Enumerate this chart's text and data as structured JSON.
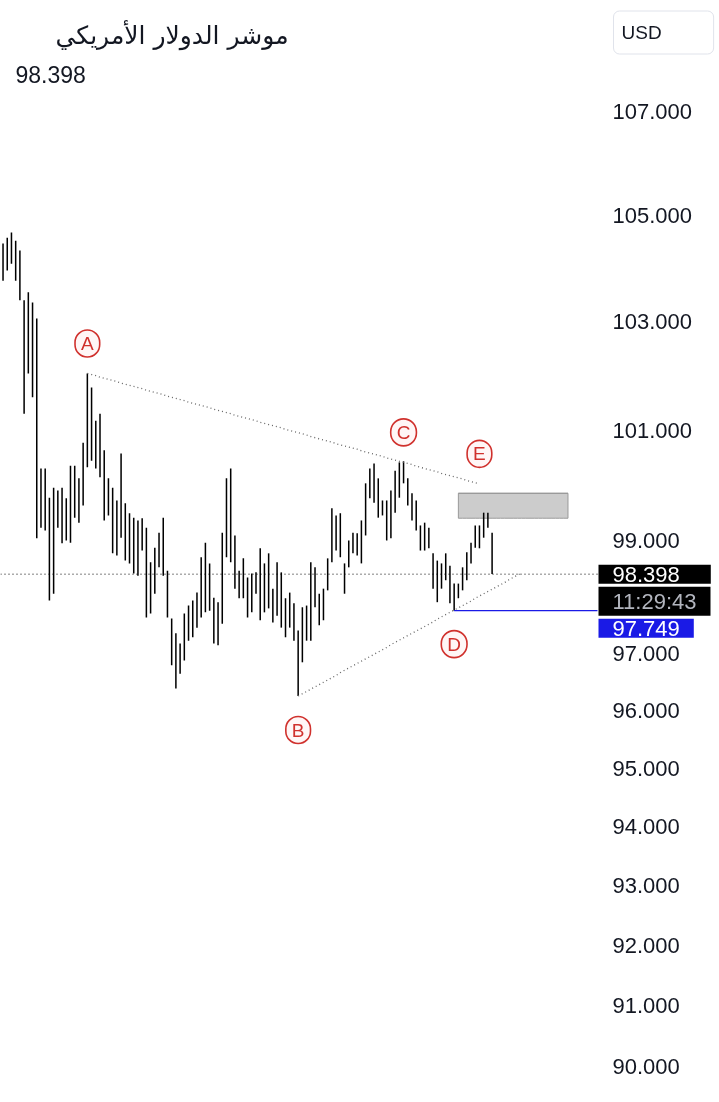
{
  "chart_data": {
    "type": "bar",
    "title": "موشر الدولار الأمريكي",
    "subtitle": "98.398",
    "categories": [
      null,
      null,
      null,
      null,
      null,
      null,
      null,
      null,
      null,
      null,
      null,
      null,
      null,
      null,
      null,
      null,
      null,
      null,
      null,
      null,
      null,
      null,
      null,
      null,
      null,
      null,
      null,
      null,
      null,
      null,
      null,
      null,
      null,
      null,
      null,
      null,
      null,
      null,
      null,
      null,
      null,
      null,
      null,
      null,
      null,
      null,
      null,
      null,
      null,
      null,
      null,
      null,
      null,
      null,
      null,
      null,
      null,
      null,
      null,
      null,
      null,
      null,
      null,
      null,
      null,
      null,
      null,
      null,
      null,
      null,
      null,
      null,
      null,
      null,
      null,
      null,
      null,
      null,
      null,
      null,
      null,
      null,
      null,
      null,
      null,
      null,
      null,
      null,
      null,
      null,
      null,
      null,
      null,
      null,
      null,
      null,
      null,
      null,
      null,
      null,
      null,
      null,
      null,
      null,
      null,
      null,
      null,
      null,
      null,
      null,
      null,
      null,
      null,
      null,
      null,
      null,
      null,
      null,
      null,
      null,
      null,
      null,
      null,
      null,
      null,
      null,
      null,
      null,
      null,
      null,
      null,
      null,
      null,
      null,
      null,
      null,
      null,
      null,
      null,
      null,
      null,
      null
    ],
    "series": [
      {
        "color": "#000000",
        "base": [
          103.77,
          103.96,
          104.09,
          103.77,
          103.4,
          101.3,
          102.04,
          101.6,
          99.04,
          99.23,
          99.18,
          97.93,
          98.05,
          99.23,
          98.95,
          99.0,
          98.96,
          99.41,
          99.32,
          99.63,
          100.32,
          100.44,
          100.3,
          100.14,
          99.36,
          99.45,
          98.77,
          98.73,
          99.05,
          98.64,
          98.59,
          98.41,
          98.37,
          98.82,
          97.63,
          97.7,
          98.05,
          98.52,
          98.37,
          97.63,
          96.79,
          96.38,
          96.64,
          96.87,
          97.22,
          97.28,
          97.45,
          97.63,
          97.72,
          97.75,
          97.17,
          97.14,
          97.52,
          98.7,
          98.61,
          98.14,
          97.97,
          97.97,
          97.63,
          97.72,
          98.05,
          97.58,
          97.72,
          97.79,
          97.54,
          97.66,
          97.45,
          97.28,
          97.45,
          97.22,
          96.25,
          96.84,
          97.22,
          97.22,
          97.81,
          97.49,
          97.58,
          98.11,
          98.61,
          98.82,
          98.7,
          98.05,
          98.52,
          98.77,
          98.73,
          98.59,
          99.09,
          99.76,
          99.68,
          99.41,
          99.45,
          99.0,
          99.04,
          99.5,
          99.77,
          100.03,
          99.63,
          99.36,
          99.18,
          98.82,
          98.82,
          98.86,
          98.14,
          97.9,
          98.14,
          98.29,
          97.88,
          97.75,
          97.97,
          98.11,
          98.29,
          98.59,
          98.87,
          98.86,
          99.05,
          99.23,
          98.4,
          null,
          null,
          null,
          null,
          null,
          null,
          null,
          null,
          null,
          null,
          null,
          null,
          null,
          null,
          null,
          null,
          null,
          null,
          null,
          null,
          null,
          null,
          null,
          null,
          null
        ],
        "values": [
          0.7,
          0.62,
          0.59,
          0.75,
          0.94,
          2.1,
          1.51,
          1.76,
          4.02,
          1.07,
          1.12,
          1.84,
          1.9,
          0.67,
          1.0,
          0.76,
          1.39,
          0.94,
          0.8,
          1.14,
          1.72,
          1.34,
          0.87,
          1.16,
          1.27,
          0.67,
          1.18,
          0.99,
          1.52,
          1.03,
          0.9,
          1.0,
          0.99,
          0.58,
          1.6,
          0.91,
          0.82,
          0.62,
          1.04,
          0.83,
          0.82,
          0.97,
          0.53,
          0.83,
          0.62,
          0.65,
          0.62,
          1.07,
          1.24,
          0.84,
          0.81,
          0.76,
          1.62,
          1.42,
          1.69,
          0.95,
          0.49,
          0.71,
          0.71,
          0.69,
          0.38,
          1.28,
          0.87,
          0.98,
          0.6,
          0.95,
          0.98,
          0.69,
          0.62,
          0.66,
          1.15,
          0.97,
          0.62,
          1.39,
          0.71,
          0.56,
          0.56,
          0.57,
          0.97,
          0.63,
          0.79,
          0.54,
          0.48,
          0.37,
          0.4,
          0.77,
          0.94,
          0.54,
          0.71,
          0.71,
          0.27,
          0.72,
          0.86,
          0.76,
          0.64,
          0.4,
          0.49,
          0.49,
          0.54,
          0.45,
          0.5,
          0.37,
          0.63,
          0.74,
          0.45,
          0.48,
          0.67,
          0.48,
          0.26,
          0.41,
          0.5,
          0.37,
          0.4,
          0.41,
          0.45,
          0.27,
          0.74,
          null,
          null,
          null,
          null,
          null,
          null,
          null,
          null,
          null,
          null,
          null,
          null,
          null,
          null,
          null,
          null,
          null,
          null,
          null,
          null,
          null,
          null,
          null,
          null,
          null
        ]
      },
      {
        "type": "line",
        "color": "#666666",
        "line_style": "dotted",
        "values": [
          null,
          null,
          null,
          null,
          null,
          null,
          null,
          null,
          null,
          null,
          null,
          null,
          null,
          null,
          null,
          null,
          null,
          null,
          null,
          null,
          102.04,
          102.02,
          102.0,
          101.97,
          101.95,
          101.93,
          101.91,
          101.89,
          101.86,
          101.84,
          101.82,
          101.8,
          101.78,
          101.76,
          101.73,
          101.71,
          101.69,
          101.67,
          101.65,
          101.62,
          101.6,
          101.58,
          101.56,
          101.54,
          101.51,
          101.49,
          101.47,
          101.45,
          101.43,
          101.41,
          101.38,
          101.36,
          101.34,
          101.32,
          101.3,
          101.27,
          101.25,
          101.23,
          101.21,
          101.19,
          101.17,
          101.14,
          101.12,
          101.1,
          101.08,
          101.06,
          101.04,
          101.01,
          100.99,
          100.97,
          100.95,
          100.93,
          100.91,
          100.88,
          100.86,
          100.84,
          100.82,
          100.8,
          100.78,
          100.75,
          100.73,
          100.71,
          100.69,
          100.67,
          100.65,
          100.62,
          100.6,
          100.58,
          100.56,
          100.54,
          100.52,
          100.49,
          100.47,
          100.45,
          100.43,
          100.41,
          100.39,
          100.37,
          100.34,
          100.32,
          100.3,
          100.28,
          100.26,
          100.24,
          100.21,
          100.19,
          100.17,
          100.15,
          100.13,
          100.11,
          100.08,
          100.06,
          100.04,
          100.02,
          null,
          null,
          null,
          null,
          null,
          null,
          null,
          null,
          null,
          null,
          null,
          null,
          null,
          null,
          null,
          null,
          null,
          null,
          null,
          null,
          null,
          null,
          null,
          null,
          null,
          null,
          null,
          null
        ],
        "value_labels": [
          null,
          null,
          null,
          null,
          null,
          null,
          null,
          null,
          null,
          null,
          null,
          null,
          null,
          null,
          null,
          null,
          null,
          null,
          null,
          null,
          "A",
          null,
          null,
          null,
          null,
          null,
          null,
          null,
          null,
          null,
          null,
          null,
          null,
          null,
          null,
          null,
          null,
          null,
          null,
          null,
          null,
          null,
          null,
          null,
          null,
          null,
          null,
          null,
          null,
          null,
          null,
          null,
          null,
          null,
          null,
          null,
          null,
          null,
          null,
          null,
          null,
          null,
          null,
          null,
          null,
          null,
          null,
          null,
          null,
          null,
          null,
          null,
          null,
          null,
          null,
          null,
          null,
          null,
          null,
          null,
          null,
          null,
          null,
          null,
          null,
          null,
          null,
          null,
          null,
          null,
          null,
          null,
          null,
          null,
          null,
          "C",
          null,
          null,
          null,
          null,
          null,
          null,
          null,
          null,
          null,
          null,
          null,
          null,
          null,
          null,
          null,
          null,
          null,
          "E",
          null,
          null,
          null,
          null,
          null,
          null,
          null,
          null,
          null,
          null,
          null,
          null,
          null,
          null,
          null,
          null,
          null,
          null,
          null,
          null,
          null,
          null,
          null,
          null,
          null,
          null,
          null,
          null
        ]
      },
      {
        "type": "line",
        "color": "#666666",
        "line_style": "dotted",
        "values": [
          null,
          null,
          null,
          null,
          null,
          null,
          null,
          null,
          null,
          null,
          null,
          null,
          null,
          null,
          null,
          null,
          null,
          null,
          null,
          null,
          null,
          null,
          null,
          null,
          null,
          null,
          null,
          null,
          null,
          null,
          null,
          null,
          null,
          null,
          null,
          null,
          null,
          null,
          null,
          null,
          null,
          null,
          null,
          null,
          null,
          null,
          null,
          null,
          null,
          null,
          null,
          null,
          null,
          null,
          null,
          null,
          null,
          null,
          null,
          null,
          null,
          null,
          null,
          null,
          null,
          null,
          null,
          null,
          null,
          null,
          96.25,
          96.29,
          96.33,
          96.37,
          96.41,
          96.45,
          96.49,
          96.53,
          96.57,
          96.61,
          96.66,
          96.7,
          96.74,
          96.78,
          96.82,
          96.86,
          96.9,
          96.94,
          96.98,
          97.02,
          97.06,
          97.1,
          97.15,
          97.19,
          97.23,
          97.27,
          97.31,
          97.35,
          97.39,
          97.43,
          97.47,
          97.51,
          97.55,
          97.6,
          97.64,
          97.68,
          97.72,
          97.76,
          97.8,
          97.84,
          97.88,
          97.92,
          97.97,
          98.01,
          98.05,
          98.09,
          98.13,
          98.17,
          98.21,
          98.25,
          98.3,
          98.34,
          98.38,
          98.42,
          null,
          null,
          null,
          null,
          null,
          null,
          null,
          null,
          null,
          null,
          null,
          null,
          null,
          null,
          null,
          null,
          null,
          null
        ],
        "value_labels": [
          null,
          null,
          null,
          null,
          null,
          null,
          null,
          null,
          null,
          null,
          null,
          null,
          null,
          null,
          null,
          null,
          null,
          null,
          null,
          null,
          null,
          null,
          null,
          null,
          null,
          null,
          null,
          null,
          null,
          null,
          null,
          null,
          null,
          null,
          null,
          null,
          null,
          null,
          null,
          null,
          null,
          null,
          null,
          null,
          null,
          null,
          null,
          null,
          null,
          null,
          null,
          null,
          null,
          null,
          null,
          null,
          null,
          null,
          null,
          null,
          null,
          null,
          null,
          null,
          null,
          null,
          null,
          null,
          null,
          null,
          "B",
          null,
          null,
          null,
          null,
          null,
          null,
          null,
          null,
          null,
          null,
          null,
          null,
          null,
          null,
          null,
          null,
          null,
          null,
          null,
          null,
          null,
          null,
          null,
          null,
          null,
          null,
          null,
          null,
          null,
          null,
          null,
          null,
          null,
          null,
          null,
          null,
          "D",
          null,
          null,
          null,
          null,
          null,
          null,
          null,
          null,
          null,
          null,
          null,
          null,
          null,
          null,
          null,
          null,
          null,
          null,
          null,
          null,
          null,
          null,
          null,
          null,
          null,
          null,
          null,
          null,
          null,
          null,
          null,
          null,
          null,
          null
        ]
      },
      {
        "type": "line",
        "color": "#9a9a9a",
        "values": [
          null,
          null,
          null,
          null,
          null,
          null,
          null,
          null,
          null,
          null,
          null,
          null,
          null,
          null,
          null,
          null,
          null,
          null,
          null,
          null,
          null,
          null,
          null,
          null,
          null,
          null,
          null,
          null,
          null,
          null,
          null,
          null,
          null,
          null,
          null,
          null,
          null,
          null,
          null,
          null,
          null,
          null,
          null,
          null,
          null,
          null,
          null,
          null,
          null,
          null,
          null,
          null,
          null,
          null,
          null,
          null,
          null,
          null,
          null,
          null,
          null,
          null,
          null,
          null,
          null,
          null,
          null,
          null,
          null,
          null,
          null,
          null,
          null,
          null,
          null,
          null,
          null,
          null,
          null,
          null,
          null,
          null,
          null,
          null,
          null,
          null,
          null,
          null,
          null,
          null,
          null,
          null,
          null,
          null,
          null,
          null,
          null,
          null,
          null,
          null,
          null,
          null,
          null,
          null,
          null,
          null,
          null,
          null,
          99.85,
          99.85,
          99.85,
          99.85,
          99.85,
          99.85,
          99.85,
          99.85,
          99.85,
          99.85,
          99.85,
          99.85,
          99.85,
          99.85,
          99.85,
          99.85,
          99.85,
          99.85,
          99.85,
          99.85,
          99.85,
          99.85,
          99.85,
          99.85,
          99.85,
          99.85,
          99.85,
          null,
          null,
          null,
          null,
          null,
          null,
          null
        ],
        "upper": [
          null,
          null,
          null,
          null,
          null,
          null,
          null,
          null,
          null,
          null,
          null,
          null,
          null,
          null,
          null,
          null,
          null,
          null,
          null,
          null,
          null,
          null,
          null,
          null,
          null,
          null,
          null,
          null,
          null,
          null,
          null,
          null,
          null,
          null,
          null,
          null,
          null,
          null,
          null,
          null,
          null,
          null,
          null,
          null,
          null,
          null,
          null,
          null,
          null,
          null,
          null,
          null,
          null,
          null,
          null,
          null,
          null,
          null,
          null,
          null,
          null,
          null,
          null,
          null,
          null,
          null,
          null,
          null,
          null,
          null,
          null,
          null,
          null,
          null,
          null,
          null,
          null,
          null,
          null,
          null,
          null,
          null,
          null,
          null,
          null,
          null,
          null,
          null,
          null,
          null,
          null,
          null,
          null,
          null,
          null,
          null,
          null,
          null,
          null,
          null,
          null,
          null,
          null,
          null,
          null,
          null,
          null,
          null,
          99.85,
          99.85,
          99.85,
          99.85,
          99.85,
          99.85,
          99.85,
          99.85,
          99.85,
          99.85,
          99.85,
          99.85,
          99.85,
          99.85,
          99.85,
          99.85,
          99.85,
          99.85,
          99.85,
          99.85,
          99.85,
          99.85,
          99.85,
          99.85,
          99.85,
          99.85,
          99.85,
          null,
          null,
          null,
          null,
          null,
          null,
          null
        ],
        "lower": [
          null,
          null,
          null,
          null,
          null,
          null,
          null,
          null,
          null,
          null,
          null,
          null,
          null,
          null,
          null,
          null,
          null,
          null,
          null,
          null,
          null,
          null,
          null,
          null,
          null,
          null,
          null,
          null,
          null,
          null,
          null,
          null,
          null,
          null,
          null,
          null,
          null,
          null,
          null,
          null,
          null,
          null,
          null,
          null,
          null,
          null,
          null,
          null,
          null,
          null,
          null,
          null,
          null,
          null,
          null,
          null,
          null,
          null,
          null,
          null,
          null,
          null,
          null,
          null,
          null,
          null,
          null,
          null,
          null,
          null,
          null,
          null,
          null,
          null,
          null,
          null,
          null,
          null,
          null,
          null,
          null,
          null,
          null,
          null,
          null,
          null,
          null,
          null,
          null,
          null,
          null,
          null,
          null,
          null,
          null,
          null,
          null,
          null,
          null,
          null,
          null,
          null,
          null,
          null,
          null,
          null,
          null,
          null,
          99.4,
          99.4,
          99.4,
          99.4,
          99.4,
          99.4,
          99.4,
          99.4,
          99.4,
          99.4,
          99.4,
          99.4,
          99.4,
          99.4,
          99.4,
          99.4,
          99.4,
          99.4,
          99.4,
          99.4,
          99.4,
          99.4,
          99.4,
          99.4,
          99.4,
          99.4,
          99.4,
          null,
          null,
          null,
          null,
          null,
          null,
          null
        ]
      },
      {
        "type": "line",
        "color": "#1a1ae6",
        "values": [
          null,
          null,
          null,
          null,
          null,
          null,
          null,
          null,
          null,
          null,
          null,
          null,
          null,
          null,
          null,
          null,
          null,
          null,
          null,
          null,
          null,
          null,
          null,
          null,
          null,
          null,
          null,
          null,
          null,
          null,
          null,
          null,
          null,
          null,
          null,
          null,
          null,
          null,
          null,
          null,
          null,
          null,
          null,
          null,
          null,
          null,
          null,
          null,
          null,
          null,
          null,
          null,
          null,
          null,
          null,
          null,
          null,
          null,
          null,
          null,
          null,
          null,
          null,
          null,
          null,
          null,
          null,
          null,
          null,
          null,
          null,
          null,
          null,
          null,
          null,
          null,
          null,
          null,
          null,
          null,
          null,
          null,
          null,
          null,
          null,
          null,
          null,
          null,
          null,
          null,
          null,
          null,
          null,
          null,
          null,
          null,
          null,
          null,
          null,
          null,
          null,
          null,
          null,
          null,
          null,
          null,
          null,
          97.749,
          97.749,
          97.749,
          97.749,
          97.749,
          97.749,
          97.749,
          97.749,
          97.749,
          97.749,
          97.749,
          97.749,
          97.749,
          97.749,
          97.749,
          97.749,
          97.749,
          97.749,
          97.749,
          97.749,
          97.749,
          97.749,
          97.749,
          97.749,
          97.749,
          97.749,
          97.749,
          97.749,
          97.749,
          97.749,
          97.749,
          97.749,
          97.749,
          97.749,
          97.749
        ],
        "value_labels": [
          null,
          null,
          null,
          null,
          null,
          null,
          null,
          null,
          null,
          null,
          null,
          null,
          null,
          null,
          null,
          null,
          null,
          null,
          null,
          null,
          null,
          null,
          null,
          null,
          null,
          null,
          null,
          null,
          null,
          null,
          null,
          null,
          null,
          null,
          null,
          null,
          null,
          null,
          null,
          null,
          null,
          null,
          null,
          null,
          null,
          null,
          null,
          null,
          null,
          null,
          null,
          null,
          null,
          null,
          null,
          null,
          null,
          null,
          null,
          null,
          null,
          null,
          null,
          null,
          null,
          null,
          null,
          null,
          null,
          null,
          null,
          null,
          null,
          null,
          null,
          null,
          null,
          null,
          null,
          null,
          null,
          null,
          null,
          null,
          null,
          null,
          null,
          null,
          null,
          null,
          null,
          null,
          null,
          null,
          null,
          null,
          null,
          null,
          null,
          null,
          null,
          null,
          null,
          null,
          null,
          null,
          null,
          null,
          null,
          null,
          null,
          null,
          null,
          null,
          null,
          null,
          null,
          null,
          null,
          null,
          null,
          null,
          null,
          null,
          null,
          null,
          null,
          null,
          null,
          null,
          null,
          null,
          null,
          null,
          null,
          null,
          null,
          null,
          null,
          null,
          null,
          "97.749"
        ]
      }
    ],
    "ref_lines": [
      {
        "axis": "y",
        "value": 98.398,
        "label": "98.398",
        "color": "#000000",
        "line_style": "dotted"
      }
    ],
    "annotations": [
      "USD",
      "11:29:43"
    ],
    "log": true,
    "ylim": [
      89.42,
      109.17
    ],
    "yticks": [
      {
        "value": 90,
        "label": "90.000"
      },
      {
        "value": 91,
        "label": "91.000"
      },
      {
        "value": 92,
        "label": "92.000"
      },
      {
        "value": 93,
        "label": "93.000"
      },
      {
        "value": 94,
        "label": "94.000"
      },
      {
        "value": 95,
        "label": "95.000"
      },
      {
        "value": 96,
        "label": "96.000"
      },
      {
        "value": 97,
        "label": "97.000"
      },
      {
        "value": 99,
        "label": "99.000"
      },
      {
        "value": 101,
        "label": "101.000"
      },
      {
        "value": 103,
        "label": "103.000"
      },
      {
        "value": 105,
        "label": "105.000"
      },
      {
        "value": 107,
        "label": "107.000"
      }
    ],
    "tick_labels": "y"
  }
}
